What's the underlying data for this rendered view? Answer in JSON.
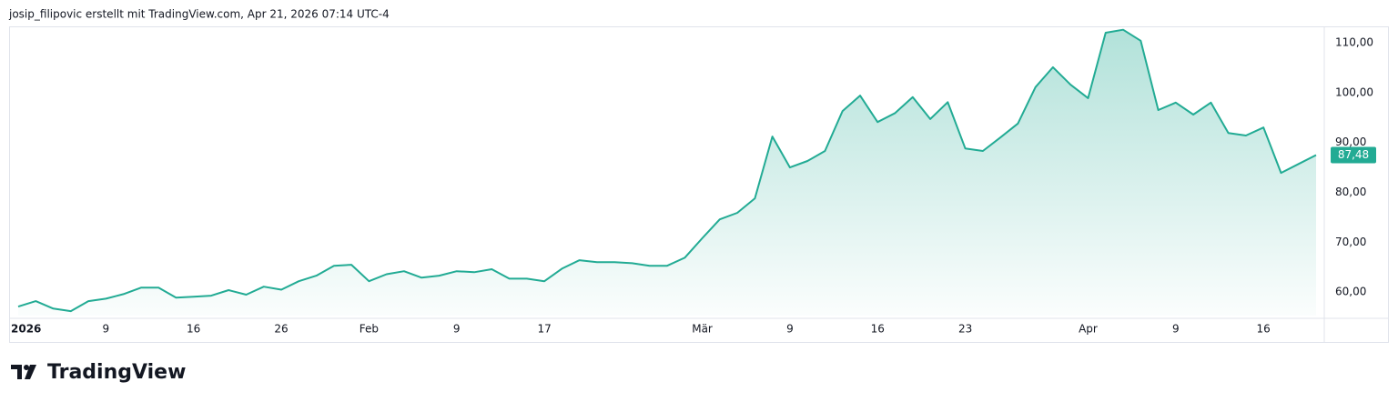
{
  "chart_data": {
    "type": "area",
    "attribution": "josip_filipovic erstellt mit TradingView.com, Apr 21, 2026 07:14 UTC-4",
    "brand": "TradingView",
    "color": "#22ab94",
    "grid": false,
    "categories": [
      "2026",
      null,
      null,
      null,
      null,
      "9",
      null,
      null,
      null,
      null,
      "16",
      null,
      null,
      null,
      null,
      "26",
      null,
      null,
      null,
      null,
      "Feb",
      null,
      null,
      null,
      null,
      "9",
      null,
      null,
      null,
      null,
      "17",
      null,
      null,
      null,
      null,
      null,
      null,
      null,
      null,
      "Mär",
      null,
      null,
      null,
      null,
      "9",
      null,
      null,
      null,
      null,
      "16",
      null,
      null,
      null,
      null,
      "23",
      null,
      null,
      null,
      null,
      null,
      null,
      "Apr",
      null,
      null,
      null,
      null,
      "9",
      null,
      null,
      null,
      null,
      "16",
      null,
      null,
      null
    ],
    "values": [
      57.1,
      58.2,
      56.7,
      56.2,
      58.2,
      58.7,
      59.6,
      60.9,
      60.9,
      58.9,
      59.1,
      59.3,
      60.4,
      59.5,
      61.1,
      60.5,
      62.2,
      63.3,
      65.3,
      65.5,
      62.2,
      63.6,
      64.2,
      62.9,
      63.3,
      64.2,
      64.0,
      64.6,
      62.7,
      62.7,
      62.2,
      64.7,
      66.4,
      66.0,
      66.0,
      65.8,
      65.3,
      65.3,
      66.9,
      70.8,
      74.6,
      75.9,
      78.8,
      91.2,
      85.0,
      86.3,
      88.3,
      96.3,
      99.4,
      94.1,
      95.9,
      99.1,
      94.7,
      98.1,
      88.8,
      88.3,
      91.0,
      93.8,
      101.1,
      105.1,
      101.6,
      98.9,
      112.0,
      112.6,
      110.4,
      96.5,
      98.0,
      95.6,
      98.0,
      91.9,
      91.4,
      93.0,
      83.9,
      85.7,
      87.48
    ],
    "value_labels": [
      null,
      null,
      null,
      null,
      null,
      null,
      null,
      null,
      null,
      null,
      null,
      null,
      null,
      null,
      null,
      null,
      null,
      null,
      null,
      null,
      null,
      null,
      null,
      null,
      null,
      null,
      null,
      null,
      null,
      null,
      null,
      null,
      null,
      null,
      null,
      null,
      null,
      null,
      null,
      null,
      null,
      null,
      null,
      null,
      null,
      null,
      null,
      null,
      null,
      null,
      null,
      null,
      null,
      null,
      null,
      null,
      null,
      null,
      null,
      null,
      null,
      null,
      null,
      null,
      null,
      null,
      null,
      null,
      null,
      null,
      null,
      null,
      null,
      null,
      "87,48"
    ],
    "ylim": [
      55.3,
      113.1
    ],
    "yticks": [
      {
        "value": 60,
        "label": "60,00"
      },
      {
        "value": 70,
        "label": "70,00"
      },
      {
        "value": 80,
        "label": "80,00"
      },
      {
        "value": 90,
        "label": "90,00"
      },
      {
        "value": 100,
        "label": "100,00"
      },
      {
        "value": 110,
        "label": "110,00"
      }
    ]
  }
}
